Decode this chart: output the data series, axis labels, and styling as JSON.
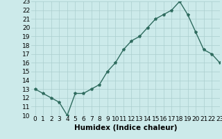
{
  "x": [
    0,
    1,
    2,
    3,
    4,
    5,
    6,
    7,
    8,
    9,
    10,
    11,
    12,
    13,
    14,
    15,
    16,
    17,
    18,
    19,
    20,
    21,
    22,
    23
  ],
  "y": [
    13,
    12.5,
    12,
    11.5,
    10,
    12.5,
    12.5,
    13,
    13.5,
    15,
    16,
    17.5,
    18.5,
    19,
    20,
    21,
    21.5,
    22,
    23,
    21.5,
    19.5,
    17.5,
    17,
    16
  ],
  "line_color": "#2e6b5e",
  "marker": "*",
  "marker_size": 3,
  "bg_color": "#cceaea",
  "grid_color": "#aacece",
  "xlabel": "Humidex (Indice chaleur)",
  "ylim": [
    10,
    23
  ],
  "xlim": [
    -0.5,
    23
  ],
  "yticks": [
    10,
    11,
    12,
    13,
    14,
    15,
    16,
    17,
    18,
    19,
    20,
    21,
    22,
    23
  ],
  "xticks": [
    0,
    1,
    2,
    3,
    4,
    5,
    6,
    7,
    8,
    9,
    10,
    11,
    12,
    13,
    14,
    15,
    16,
    17,
    18,
    19,
    20,
    21,
    22,
    23
  ],
  "tick_label_fontsize": 6.5,
  "xlabel_fontsize": 7.5
}
